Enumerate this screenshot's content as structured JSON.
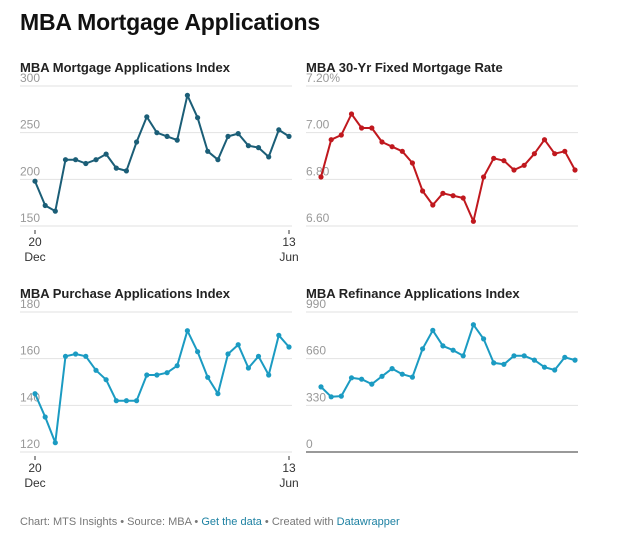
{
  "title": "MBA Mortgage Applications",
  "footer": {
    "prefix": "Chart: MTS Insights • Source: MBA • ",
    "link1": "Get the data",
    "mid": " • Created with ",
    "link2": "Datawrapper"
  },
  "colors": {
    "dark_teal": "#1b5e77",
    "red": "#c0181e",
    "light_blue": "#1b9bc2"
  },
  "chart_data": [
    {
      "type": "line",
      "title": "MBA Mortgage Applications Index",
      "color": "#1b5e77",
      "y_ticks": [
        "150",
        "200",
        "250",
        "300"
      ],
      "y_tick_values": [
        150,
        200,
        250,
        300
      ],
      "ylim": [
        150,
        300
      ],
      "x_labels": [
        {
          "top": "20",
          "bottom": "Dec",
          "index": 0
        },
        {
          "top": "13",
          "bottom": "Jun",
          "index": 25
        }
      ],
      "values": [
        198,
        172,
        166,
        221,
        221,
        217,
        221,
        227,
        212,
        209,
        240,
        267,
        250,
        246,
        242,
        290,
        266,
        230,
        221,
        246,
        249,
        236,
        234,
        224,
        253,
        246
      ]
    },
    {
      "type": "line",
      "title": "MBA 30-Yr Fixed Mortgage Rate",
      "color": "#c0181e",
      "y_ticks": [
        "6.60",
        "6.80",
        "7.00",
        "7.20%"
      ],
      "y_tick_values": [
        6.6,
        6.8,
        7.0,
        7.2
      ],
      "ylim": [
        6.6,
        7.2
      ],
      "x_labels": [],
      "values": [
        6.81,
        6.97,
        6.99,
        7.08,
        7.02,
        7.02,
        6.96,
        6.94,
        6.92,
        6.87,
        6.75,
        6.69,
        6.74,
        6.73,
        6.72,
        6.62,
        6.81,
        6.89,
        6.88,
        6.84,
        6.86,
        6.91,
        6.97,
        6.91,
        6.92,
        6.84
      ]
    },
    {
      "type": "line",
      "title": "MBA Purchase Applications Index",
      "color": "#1b9bc2",
      "y_ticks": [
        "120",
        "140",
        "160",
        "180"
      ],
      "y_tick_values": [
        120,
        140,
        160,
        180
      ],
      "ylim": [
        120,
        180
      ],
      "x_labels": [
        {
          "top": "20",
          "bottom": "Dec",
          "index": 0
        },
        {
          "top": "13",
          "bottom": "Jun",
          "index": 25
        }
      ],
      "values": [
        145,
        135,
        124,
        161,
        162,
        161,
        155,
        151,
        142,
        142,
        142,
        153,
        153,
        154,
        157,
        172,
        163,
        152,
        145,
        162,
        166,
        156,
        161,
        153,
        170,
        165
      ]
    },
    {
      "type": "line",
      "title": "MBA Refinance Applications Index",
      "color": "#1b9bc2",
      "y_ticks": [
        "0",
        "330",
        "660",
        "990"
      ],
      "y_tick_values": [
        0,
        330,
        660,
        990
      ],
      "ylim": [
        0,
        990
      ],
      "baseline_at_zero": true,
      "x_labels": [],
      "values": [
        460,
        390,
        395,
        525,
        515,
        480,
        535,
        590,
        550,
        530,
        730,
        860,
        750,
        720,
        680,
        900,
        800,
        630,
        620,
        680,
        680,
        650,
        600,
        580,
        670,
        650
      ]
    }
  ]
}
